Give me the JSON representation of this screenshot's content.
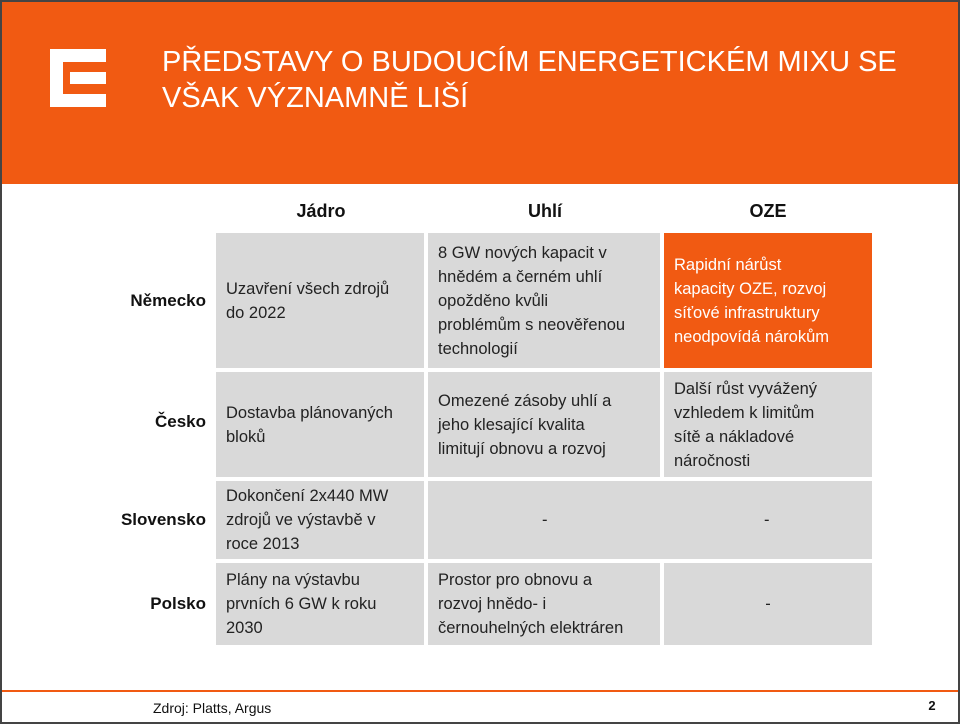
{
  "slide": {
    "title_line1": "PŘEDSTAVY O BUDOUCÍM ENERGETICKÉM MIXU SE",
    "title_line2": "VŠAK VÝZNAMNĚ LIŠÍ",
    "accent_color": "#f15a12",
    "logo_icon": "cez-e-logo-icon"
  },
  "table": {
    "columns": [
      "Jádro",
      "Uhlí",
      "OZE"
    ],
    "rows": [
      {
        "country": "Německo",
        "jadro": [
          "Uzavření všech zdrojů",
          "do 2022"
        ],
        "uhli": [
          "8 GW nových kapacit v",
          "hnědém a černém uhlí",
          "opožděno kvůli",
          "problémům s neověřenou",
          "technologií"
        ],
        "oze": [
          "Rapidní nárůst",
          "kapacity OZE, rozvoj",
          "síťové infrastruktury",
          "neodpovídá nárokům"
        ]
      },
      {
        "country": "Česko",
        "jadro": [
          "Dostavba plánovaných",
          "bloků"
        ],
        "uhli": [
          "Omezené zásoby uhlí a",
          "jeho klesající kvalita",
          "limitují obnovu a rozvoj"
        ],
        "oze": [
          "Další růst vyvážený",
          "vzhledem k limitům",
          "sítě a nákladové",
          "náročnosti"
        ]
      },
      {
        "country": "Slovensko",
        "jadro": [
          "Dokončení 2x440 MW",
          "zdrojů ve výstavbě v",
          "roce 2013"
        ],
        "uhli": "-",
        "oze": "-"
      },
      {
        "country": "Polsko",
        "jadro": [
          "Plány na výstavbu",
          "prvních 6 GW k roku",
          "2030"
        ],
        "uhli": [
          "Prostor pro obnovu a",
          "rozvoj hnědo- i",
          "černouhelných elektráren"
        ],
        "oze": "-"
      }
    ]
  },
  "footer": {
    "source": "Zdroj: Platts, Argus",
    "page_number": "2"
  }
}
